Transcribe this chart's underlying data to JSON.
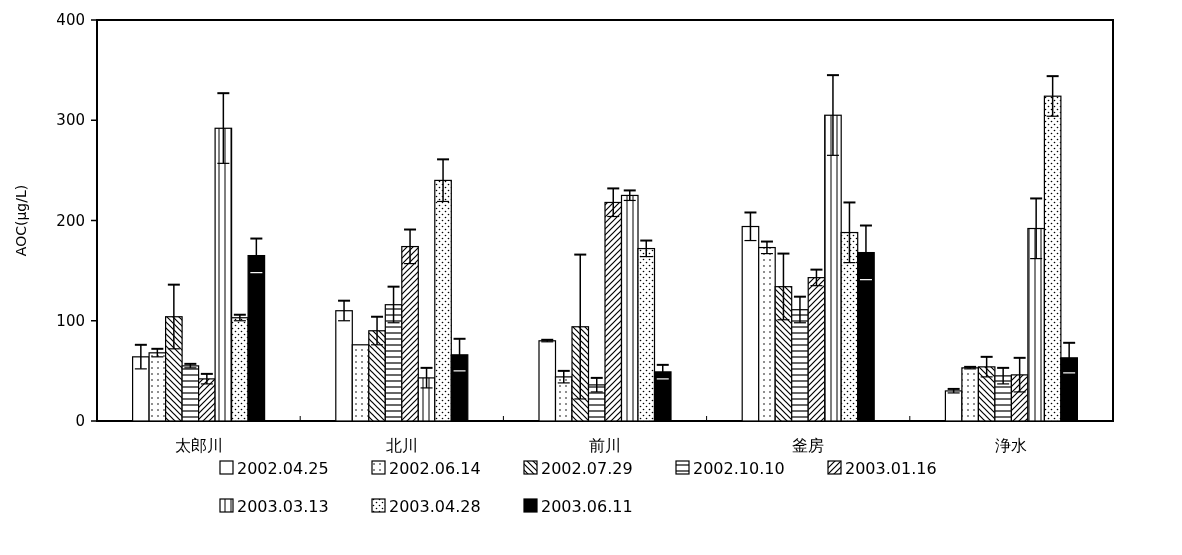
{
  "chart_data": {
    "type": "bar",
    "ylabel": "AOC(μg/L)",
    "categories": [
      "太郎川",
      "北川",
      "前川",
      "釜房",
      "浄水"
    ],
    "series": [
      {
        "name": "2002.04.25",
        "color": "#ffffff",
        "values": [
          64,
          110,
          80,
          194,
          30
        ],
        "errors": [
          12,
          10,
          1,
          14,
          2
        ]
      },
      {
        "name": "2002.06.14",
        "color": "#ffffff",
        "values": [
          68,
          76,
          44,
          173,
          53
        ],
        "errors": [
          4,
          null,
          6,
          6,
          1
        ]
      },
      {
        "name": "2002.07.29",
        "color": "#ffffff",
        "values": [
          104,
          90,
          94,
          134,
          54
        ],
        "errors": [
          32,
          14,
          72,
          33,
          10
        ]
      },
      {
        "name": "2002.10.10",
        "color": "#ffffff",
        "values": [
          55,
          116,
          36,
          111,
          45
        ],
        "errors": [
          2,
          18,
          7,
          13,
          8
        ]
      },
      {
        "name": "2003.01.16",
        "color": "#ffffff",
        "values": [
          42,
          174,
          218,
          143,
          46
        ],
        "errors": [
          5,
          17,
          14,
          8,
          17
        ]
      },
      {
        "name": "2003.03.13",
        "color": "#ffffff",
        "values": [
          292,
          43,
          225,
          305,
          192
        ],
        "errors": [
          35,
          10,
          5,
          40,
          30
        ]
      },
      {
        "name": "2003.04.28",
        "color": "#ffffff",
        "values": [
          103,
          240,
          172,
          188,
          324
        ],
        "errors": [
          3,
          21,
          8,
          30,
          20
        ]
      },
      {
        "name": "2003.06.11",
        "color": "#000000",
        "values": [
          165,
          66,
          49,
          168,
          63
        ],
        "errors": [
          17,
          16,
          7,
          27,
          15
        ]
      }
    ],
    "ylim": [
      0,
      400
    ],
    "yticks": [
      0,
      100,
      200,
      300,
      400
    ],
    "grid": false,
    "legend": "bottom"
  }
}
